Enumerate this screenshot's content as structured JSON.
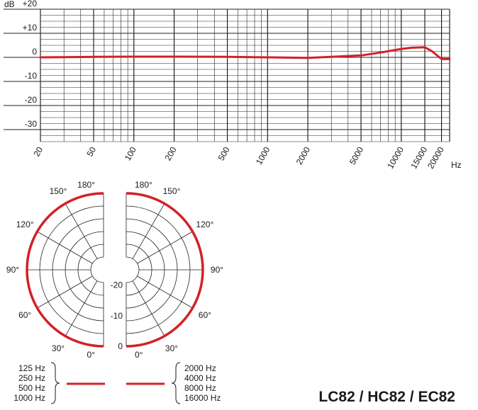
{
  "chart_data": [
    {
      "type": "line",
      "db_unit": "dB",
      "hz_unit": "Hz",
      "x_scale": "log",
      "xlim": [
        20,
        23000
      ],
      "ylim": [
        -35,
        20
      ],
      "grid": true,
      "x_ticks": [
        {
          "value": 20,
          "label": "20"
        },
        {
          "value": 50,
          "label": "50"
        },
        {
          "value": 100,
          "label": "100"
        },
        {
          "value": 200,
          "label": "200"
        },
        {
          "value": 500,
          "label": "500"
        },
        {
          "value": 1000,
          "label": "1000"
        },
        {
          "value": 2000,
          "label": "2000"
        },
        {
          "value": 5000,
          "label": "5000"
        },
        {
          "value": 10000,
          "label": "10000"
        },
        {
          "value": 15000,
          "label": "15000"
        },
        {
          "value": 20000,
          "label": "20000"
        }
      ],
      "y_ticks": [
        {
          "value": 20,
          "label": "+20"
        },
        {
          "value": 10,
          "label": "+10"
        },
        {
          "value": 0,
          "label": "0"
        },
        {
          "value": -10,
          "label": "-10"
        },
        {
          "value": -20,
          "label": "-20"
        },
        {
          "value": -30,
          "label": "-30"
        }
      ],
      "series": [
        {
          "color": "#d42027",
          "x": [
            20,
            50,
            100,
            200,
            500,
            1000,
            2000,
            3000,
            5000,
            7000,
            10000,
            12000,
            15000,
            17000,
            20000,
            23000
          ],
          "y": [
            0,
            0.2,
            0.3,
            0.3,
            0.2,
            0,
            -0.2,
            0.2,
            0.8,
            2,
            3.5,
            4,
            4.2,
            2.5,
            -0.7,
            -0.7
          ]
        }
      ]
    },
    {
      "type": "polar",
      "angle_labels": {
        "left": [
          "180°",
          "150°",
          "120°",
          "90°",
          "60°",
          "30°",
          "0°"
        ],
        "right": [
          "180°",
          "150°",
          "120°",
          "90°",
          "60°",
          "30°",
          "0°"
        ]
      },
      "angles": [
        180,
        150,
        120,
        90,
        60,
        30,
        0
      ],
      "radial_labels": [
        "-20",
        "-10",
        "0"
      ],
      "radial_values": [
        -20,
        -10,
        0
      ],
      "rlim": [
        -25,
        0
      ],
      "curves": [
        {
          "side": "left",
          "color": "#d42027",
          "level_db": 0
        },
        {
          "side": "right",
          "color": "#d42027",
          "level_db": 0
        }
      ]
    }
  ],
  "legend": {
    "low": [
      "125 Hz",
      "250 Hz",
      "500 Hz",
      "1000 Hz"
    ],
    "high": [
      "2000 Hz",
      "4000 Hz",
      "8000 Hz",
      "16000 Hz"
    ],
    "line_color": "#d42027"
  },
  "model": "LC82 / HC82 / EC82"
}
